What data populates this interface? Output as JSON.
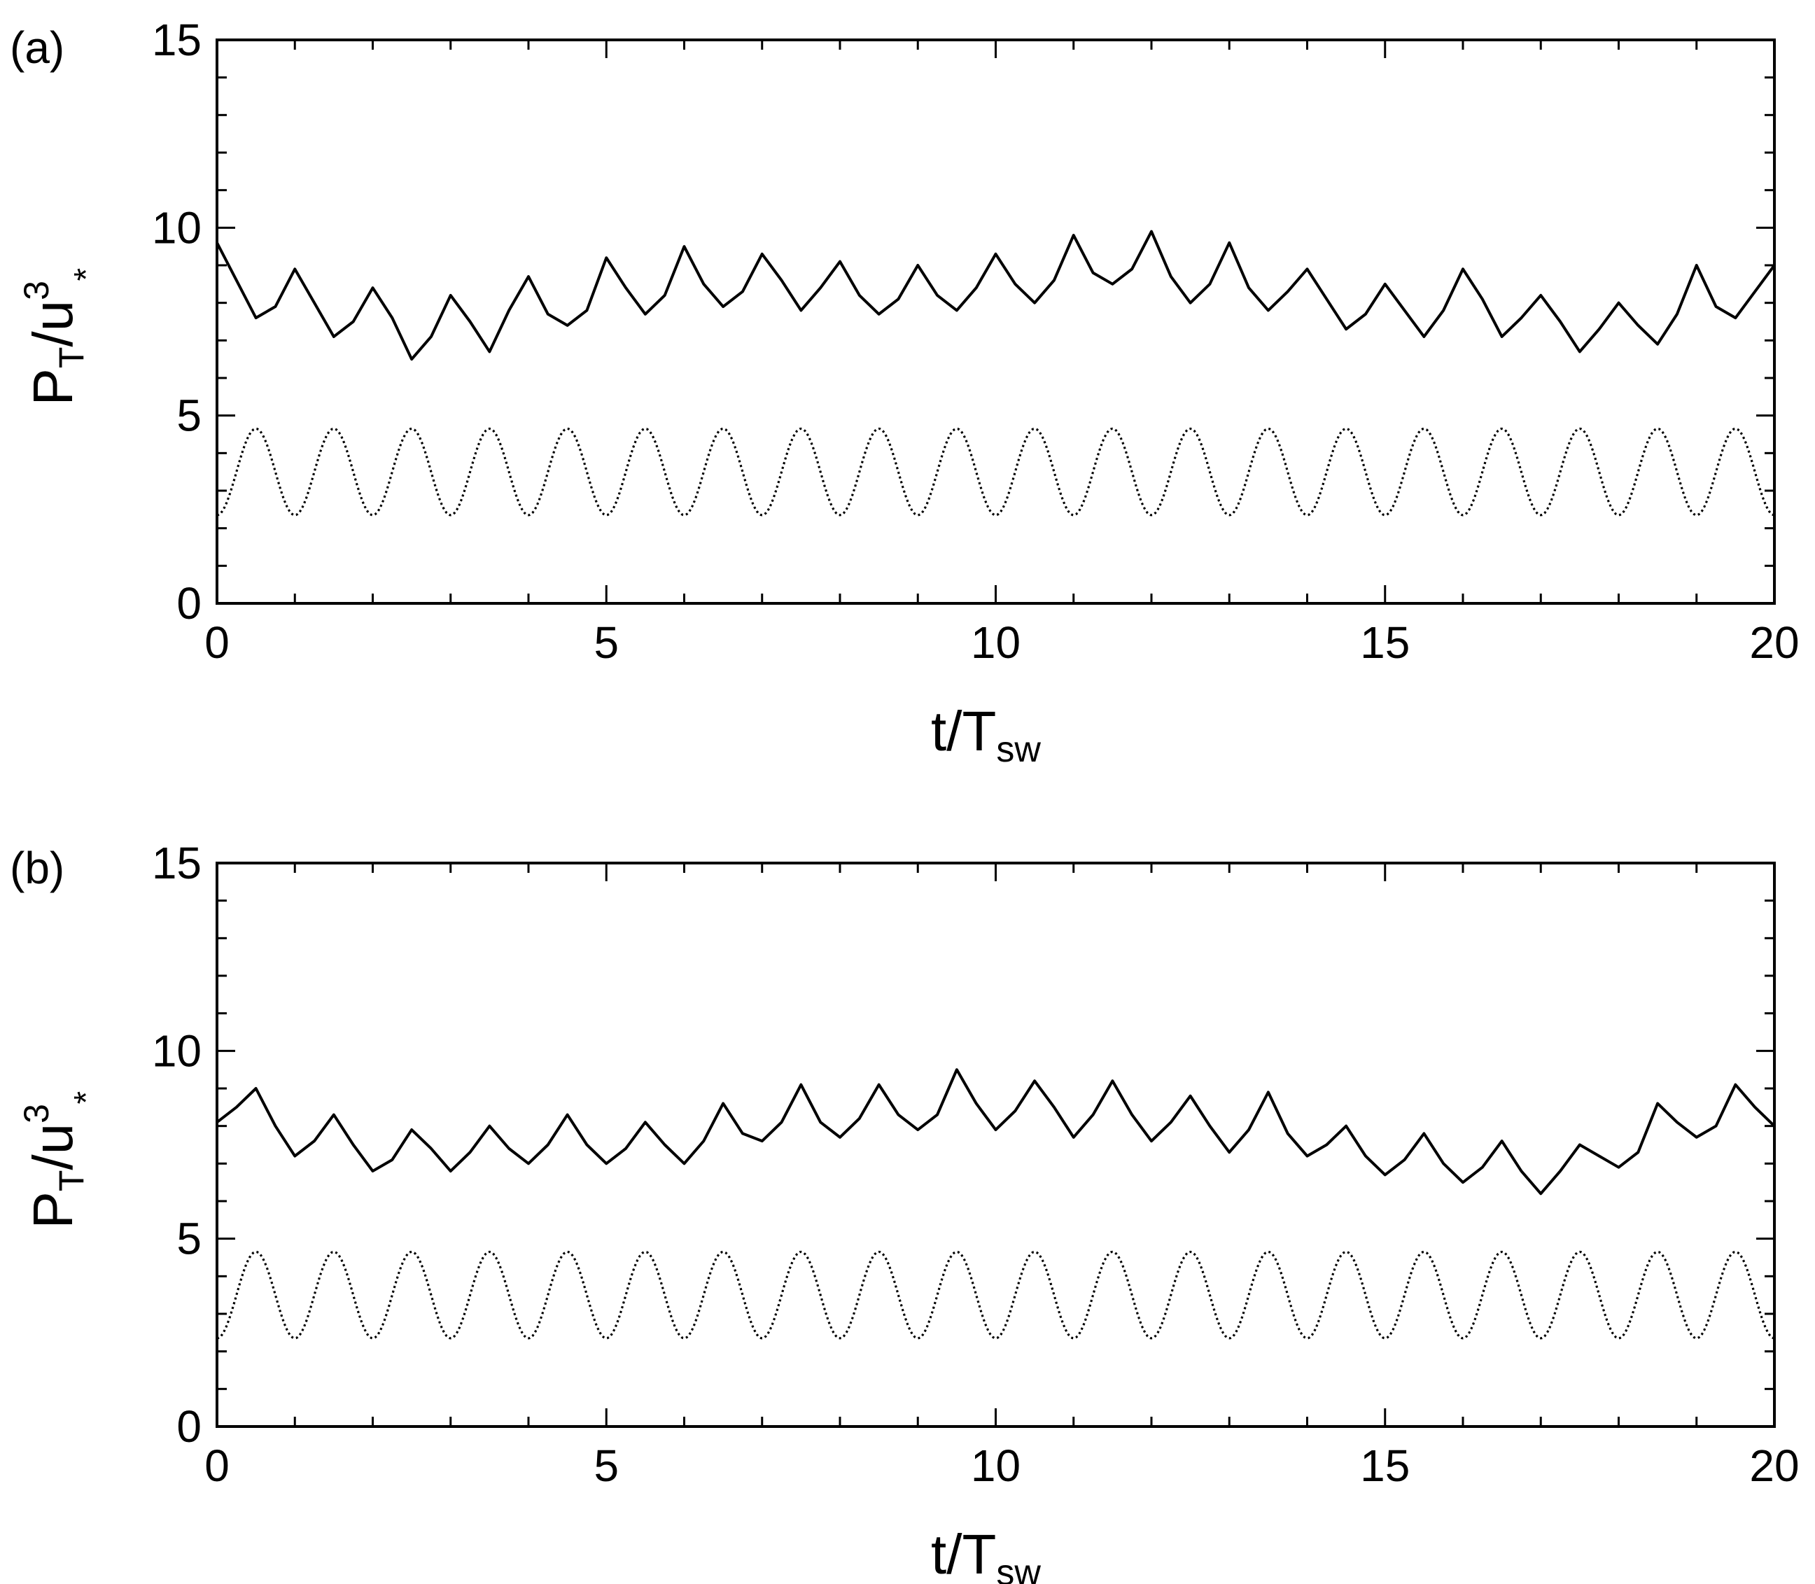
{
  "chart_data": [
    {
      "panel_label": "(a)",
      "type": "line",
      "xlabel_main": "t/T",
      "xlabel_sub": "sw",
      "ylabel_main": "P",
      "ylabel_sub": "T",
      "ylabel_rest": "/u",
      "ylabel_sup": "3",
      "ylabel_star": "*",
      "xlim": [
        0,
        20
      ],
      "ylim": [
        0,
        15
      ],
      "xticks": [
        0,
        5,
        10,
        15,
        20
      ],
      "yticks": [
        0,
        5,
        10,
        15
      ],
      "xticklabels": [
        "0",
        "5",
        "10",
        "15",
        "20"
      ],
      "yticklabels": [
        "0",
        "5",
        "10",
        "15"
      ],
      "x_minor_step": 1,
      "y_minor_step": 1,
      "grid": false,
      "series": [
        {
          "style": "solid",
          "color": "#000000",
          "x": [
            0,
            0.25,
            0.5,
            0.75,
            1.0,
            1.25,
            1.5,
            1.75,
            2.0,
            2.25,
            2.5,
            2.75,
            3.0,
            3.25,
            3.5,
            3.75,
            4.0,
            4.25,
            4.5,
            4.75,
            5.0,
            5.25,
            5.5,
            5.75,
            6.0,
            6.25,
            6.5,
            6.75,
            7.0,
            7.25,
            7.5,
            7.75,
            8.0,
            8.25,
            8.5,
            8.75,
            9.0,
            9.25,
            9.5,
            9.75,
            10.0,
            10.25,
            10.5,
            10.75,
            11.0,
            11.25,
            11.5,
            11.75,
            12.0,
            12.25,
            12.5,
            12.75,
            13.0,
            13.25,
            13.5,
            13.75,
            14.0,
            14.25,
            14.5,
            14.75,
            15.0,
            15.25,
            15.5,
            15.75,
            16.0,
            16.25,
            16.5,
            16.75,
            17.0,
            17.25,
            17.5,
            17.75,
            18.0,
            18.25,
            18.5,
            18.75,
            19.0,
            19.25,
            19.5,
            19.75,
            20.0
          ],
          "y": [
            9.6,
            8.6,
            7.6,
            7.9,
            8.9,
            8.0,
            7.1,
            7.5,
            8.4,
            7.6,
            6.5,
            7.1,
            8.2,
            7.5,
            6.7,
            7.8,
            8.7,
            7.7,
            7.4,
            7.8,
            9.2,
            8.4,
            7.7,
            8.2,
            9.5,
            8.5,
            7.9,
            8.3,
            9.3,
            8.6,
            7.8,
            8.4,
            9.1,
            8.2,
            7.7,
            8.1,
            9.0,
            8.2,
            7.8,
            8.4,
            9.3,
            8.5,
            8.0,
            8.6,
            9.8,
            8.8,
            8.5,
            8.9,
            9.9,
            8.7,
            8.0,
            8.5,
            9.6,
            8.4,
            7.8,
            8.3,
            8.9,
            8.1,
            7.3,
            7.7,
            8.5,
            7.8,
            7.1,
            7.8,
            8.9,
            8.1,
            7.1,
            7.6,
            8.2,
            7.5,
            6.7,
            7.3,
            8.0,
            7.4,
            6.9,
            7.7,
            9.0,
            7.9,
            7.6,
            8.3,
            9.0
          ]
        },
        {
          "style": "dotted",
          "color": "#000000",
          "type": "sinusoid",
          "mean": 3.5,
          "amplitude": 1.15,
          "period": 1.0,
          "phase_peak_at": 0.5
        }
      ]
    },
    {
      "panel_label": "(b)",
      "type": "line",
      "xlabel_main": "t/T",
      "xlabel_sub": "sw",
      "ylabel_main": "P",
      "ylabel_sub": "T",
      "ylabel_rest": "/u",
      "ylabel_sup": "3",
      "ylabel_star": "*",
      "xlim": [
        0,
        20
      ],
      "ylim": [
        0,
        15
      ],
      "xticks": [
        0,
        5,
        10,
        15,
        20
      ],
      "yticks": [
        0,
        5,
        10,
        15
      ],
      "xticklabels": [
        "0",
        "5",
        "10",
        "15",
        "20"
      ],
      "yticklabels": [
        "0",
        "5",
        "10",
        "15"
      ],
      "x_minor_step": 1,
      "y_minor_step": 1,
      "grid": false,
      "series": [
        {
          "style": "solid",
          "color": "#000000",
          "x": [
            0,
            0.25,
            0.5,
            0.75,
            1.0,
            1.25,
            1.5,
            1.75,
            2.0,
            2.25,
            2.5,
            2.75,
            3.0,
            3.25,
            3.5,
            3.75,
            4.0,
            4.25,
            4.5,
            4.75,
            5.0,
            5.25,
            5.5,
            5.75,
            6.0,
            6.25,
            6.5,
            6.75,
            7.0,
            7.25,
            7.5,
            7.75,
            8.0,
            8.25,
            8.5,
            8.75,
            9.0,
            9.25,
            9.5,
            9.75,
            10.0,
            10.25,
            10.5,
            10.75,
            11.0,
            11.25,
            11.5,
            11.75,
            12.0,
            12.25,
            12.5,
            12.75,
            13.0,
            13.25,
            13.5,
            13.75,
            14.0,
            14.25,
            14.5,
            14.75,
            15.0,
            15.25,
            15.5,
            15.75,
            16.0,
            16.25,
            16.5,
            16.75,
            17.0,
            17.25,
            17.5,
            17.75,
            18.0,
            18.25,
            18.5,
            18.75,
            19.0,
            19.25,
            19.5,
            19.75,
            20.0
          ],
          "y": [
            8.1,
            8.5,
            9.0,
            8.0,
            7.2,
            7.6,
            8.3,
            7.5,
            6.8,
            7.1,
            7.9,
            7.4,
            6.8,
            7.3,
            8.0,
            7.4,
            7.0,
            7.5,
            8.3,
            7.5,
            7.0,
            7.4,
            8.1,
            7.5,
            7.0,
            7.6,
            8.6,
            7.8,
            7.6,
            8.1,
            9.1,
            8.1,
            7.7,
            8.2,
            9.1,
            8.3,
            7.9,
            8.3,
            9.5,
            8.6,
            7.9,
            8.4,
            9.2,
            8.5,
            7.7,
            8.3,
            9.2,
            8.3,
            7.6,
            8.1,
            8.8,
            8.0,
            7.3,
            7.9,
            8.9,
            7.8,
            7.2,
            7.5,
            8.0,
            7.2,
            6.7,
            7.1,
            7.8,
            7.0,
            6.5,
            6.9,
            7.6,
            6.8,
            6.2,
            6.8,
            7.5,
            7.2,
            6.9,
            7.3,
            8.6,
            8.1,
            7.7,
            8.0,
            9.1,
            8.5,
            8.0
          ]
        },
        {
          "style": "dotted",
          "color": "#000000",
          "type": "sinusoid",
          "mean": 3.5,
          "amplitude": 1.15,
          "period": 1.0,
          "phase_peak_at": 0.5
        }
      ]
    }
  ]
}
